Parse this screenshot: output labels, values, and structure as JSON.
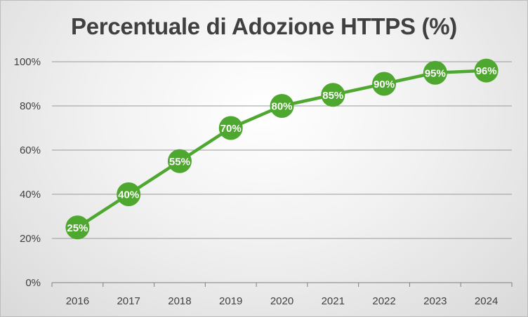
{
  "chart_data": {
    "type": "line",
    "title": "Percentuale di Adozione HTTPS (%)",
    "xlabel": "",
    "ylabel": "",
    "categories": [
      "2016",
      "2017",
      "2018",
      "2019",
      "2020",
      "2021",
      "2022",
      "2023",
      "2024"
    ],
    "series": [
      {
        "values": [
          25,
          40,
          55,
          70,
          80,
          85,
          90,
          95,
          96
        ]
      }
    ],
    "data_labels": [
      "25%",
      "40%",
      "55%",
      "70%",
      "80%",
      "85%",
      "90%",
      "95%",
      "96%"
    ],
    "ylim": [
      0,
      100
    ],
    "yticks": [
      0,
      20,
      40,
      60,
      80,
      100
    ],
    "ytick_labels": [
      "0%",
      "20%",
      "40%",
      "60%",
      "80%",
      "100%"
    ],
    "grid": true,
    "legend": "none",
    "colors": {
      "series": "#4ea72e",
      "background": "#e8e8e8",
      "text": "#404040"
    }
  }
}
